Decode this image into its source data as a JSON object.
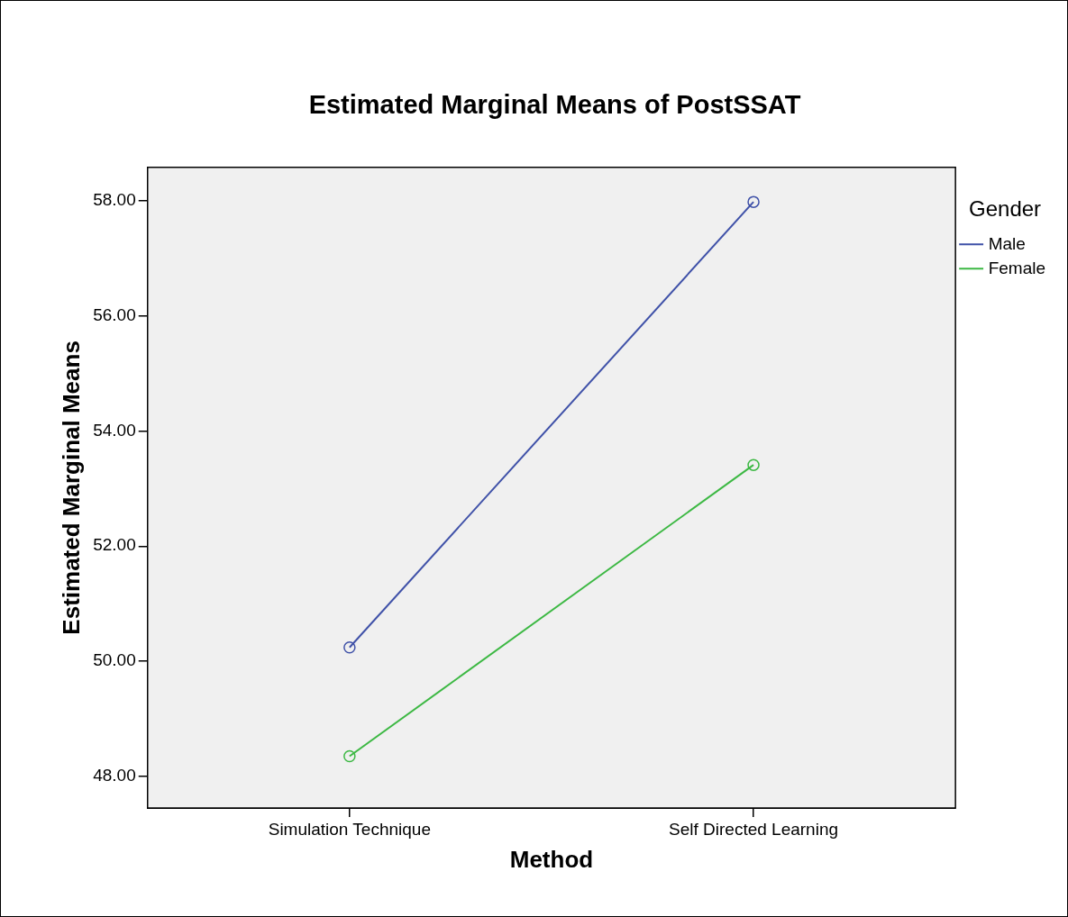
{
  "chart_data": {
    "type": "line",
    "title": "Estimated Marginal Means of PostSSAT",
    "xlabel": "Method",
    "ylabel": "Estimated Marginal Means",
    "legend_title": "Gender",
    "categories": [
      "Simulation Technique",
      "Self Directed Learning"
    ],
    "series": [
      {
        "name": "Male",
        "color": "#3f51a8",
        "values": [
          50.24,
          57.98
        ]
      },
      {
        "name": "Female",
        "color": "#3cb843",
        "values": [
          48.35,
          53.41
        ]
      }
    ],
    "ylim": [
      47.45,
      58.58
    ],
    "yticks": [
      {
        "value": 48,
        "label": "48.00"
      },
      {
        "value": 50,
        "label": "50.00"
      },
      {
        "value": 52,
        "label": "52.00"
      },
      {
        "value": 54,
        "label": "54.00"
      },
      {
        "value": 56,
        "label": "56.00"
      },
      {
        "value": 58,
        "label": "58.00"
      }
    ],
    "grid": false,
    "legend": "top right",
    "marker": "circle",
    "line_style": "solid"
  }
}
